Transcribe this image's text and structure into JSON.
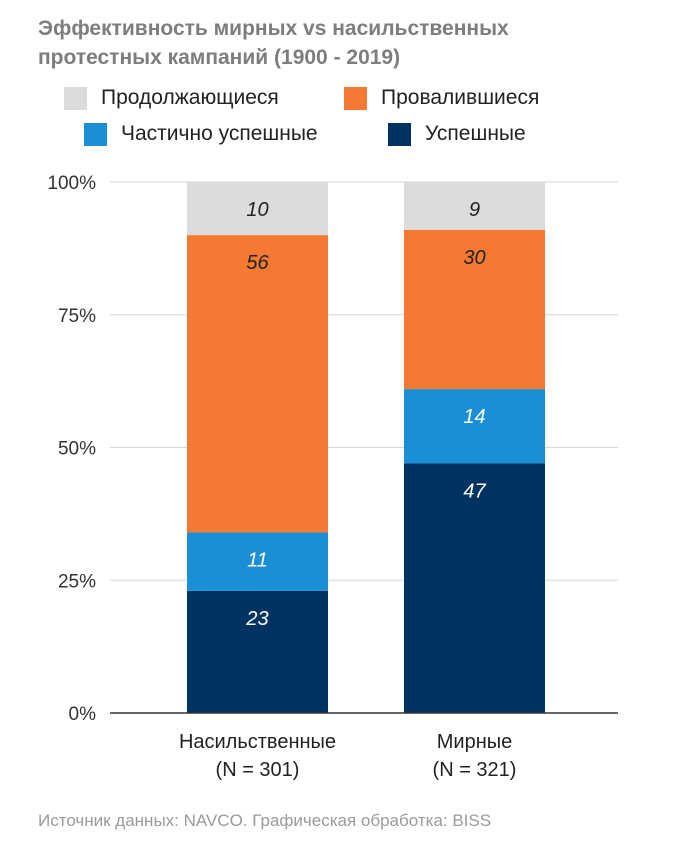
{
  "title": {
    "line1": "Эффективность мирных vs насильственных",
    "line2": "протестных кампаний (1900 - 2019)"
  },
  "legend": [
    {
      "label": "Продолжающиеся",
      "color": "#dcdcdc"
    },
    {
      "label": "Провалившиеся",
      "color": "#f47a33"
    },
    {
      "label": "Частично успешные",
      "color": "#1a8fd6"
    },
    {
      "label": "Успешные",
      "color": "#003361"
    }
  ],
  "source": "Источник данных: NAVCO. Графическая обработка: BISS",
  "chart_data": {
    "type": "bar",
    "stacked": true,
    "normalized_percent": true,
    "categories": [
      {
        "label_line1": "Насильственные",
        "label_line2": "(N = 301)"
      },
      {
        "label_line1": "Мирные",
        "label_line2": "(N = 321)"
      }
    ],
    "series": [
      {
        "name": "Успешные",
        "color": "#003361",
        "values": [
          23,
          47
        ]
      },
      {
        "name": "Частично успешные",
        "color": "#1a8fd6",
        "values": [
          11,
          14
        ]
      },
      {
        "name": "Провалившиеся",
        "color": "#f47a33",
        "values": [
          56,
          30
        ]
      },
      {
        "name": "Продолжающиеся",
        "color": "#dcdcdc",
        "values": [
          10,
          9
        ]
      }
    ],
    "ylim": [
      0,
      100
    ],
    "y_ticks": [
      "0%",
      "25%",
      "50%",
      "75%",
      "100%"
    ],
    "grid": true,
    "legend_position": "top",
    "label_colors": {
      "dark": "#222222",
      "light": "#ffffff"
    }
  }
}
